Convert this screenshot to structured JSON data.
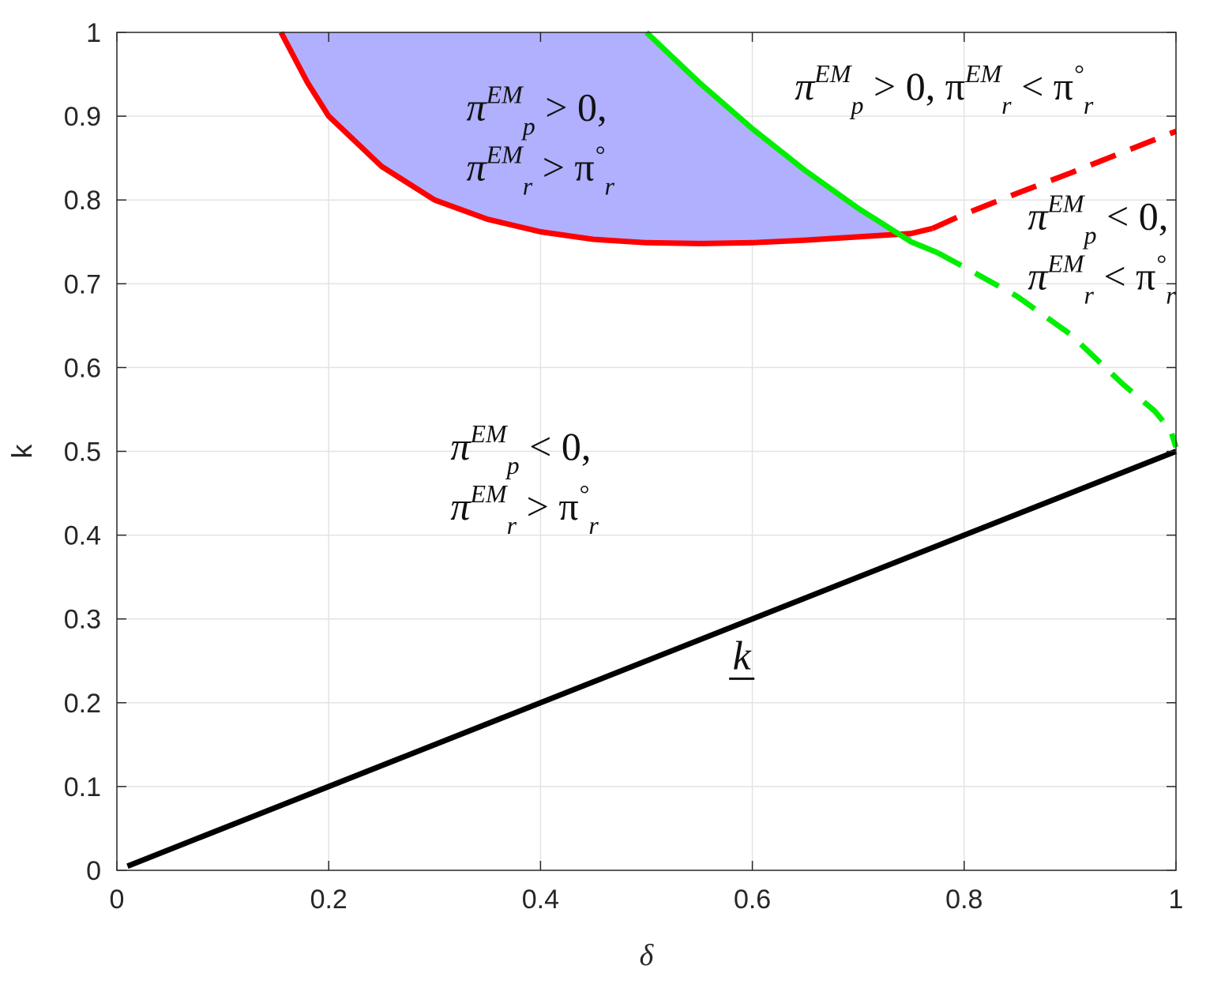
{
  "chart_data": {
    "type": "line",
    "title": "",
    "xlabel": "δ",
    "ylabel": "k",
    "xlim": [
      0,
      1
    ],
    "ylim": [
      0,
      1
    ],
    "xticks": [
      0,
      0.2,
      0.4,
      0.6,
      0.8,
      1
    ],
    "xtick_labels": [
      "0",
      "0.2",
      "0.4",
      "0.6",
      "0.8",
      "1"
    ],
    "yticks": [
      0,
      0.1,
      0.2,
      0.3,
      0.4,
      0.5,
      0.6,
      0.7,
      0.8,
      0.9,
      1
    ],
    "ytick_labels": [
      "0",
      "0.1",
      "0.2",
      "0.3",
      "0.4",
      "0.5",
      "0.6",
      "0.7",
      "0.8",
      "0.9",
      "1"
    ],
    "grid": true,
    "colors": {
      "red": "#ff0000",
      "green": "#00ee00",
      "black": "#000000",
      "fill": "#b0b0ff",
      "grid": "#e3e3e3",
      "axis": "#262626"
    },
    "series": [
      {
        "color": "red",
        "style": "solid",
        "x": [
          0.155,
          0.18,
          0.2,
          0.25,
          0.3,
          0.35,
          0.4,
          0.45,
          0.5,
          0.55,
          0.6,
          0.65,
          0.7,
          0.75,
          0.77
        ],
        "y": [
          1.0,
          0.94,
          0.9,
          0.84,
          0.8,
          0.777,
          0.762,
          0.753,
          0.749,
          0.748,
          0.749,
          0.752,
          0.756,
          0.76,
          0.766
        ]
      },
      {
        "color": "red",
        "style": "dashed",
        "x": [
          0.77,
          0.8,
          0.85,
          0.9,
          0.95,
          1.0
        ],
        "y": [
          0.766,
          0.783,
          0.808,
          0.832,
          0.857,
          0.882
        ]
      },
      {
        "color": "green",
        "style": "solid",
        "x": [
          0.5,
          0.55,
          0.6,
          0.65,
          0.7,
          0.75,
          0.775
        ],
        "y": [
          1.0,
          0.94,
          0.885,
          0.835,
          0.79,
          0.75,
          0.737
        ]
      },
      {
        "color": "green",
        "style": "dashed",
        "x": [
          0.775,
          0.8,
          0.85,
          0.9,
          0.95,
          0.98,
          0.995,
          1.0
        ],
        "y": [
          0.737,
          0.72,
          0.685,
          0.64,
          0.58,
          0.548,
          0.525,
          0.505
        ]
      },
      {
        "color": "black",
        "style": "solid",
        "x": [
          0.01,
          1.0
        ],
        "y": [
          0.005,
          0.5
        ]
      }
    ],
    "annotations": [
      {
        "id": "region_top_left",
        "lines": [
          {
            "pi": "π",
            "sub": "p",
            "sup": "EM",
            "rest": " > 0,"
          },
          {
            "pi": "π",
            "sub": "r",
            "sup": "EM",
            "rest": " > π",
            "tail_sub": "r",
            "tail_sup": "°"
          }
        ],
        "x": 0.33,
        "y": 0.895
      },
      {
        "id": "region_top_right",
        "lines": [
          {
            "pi": "π",
            "sub": "p",
            "sup": "EM",
            "rest": " > 0, π",
            "mid_sub": "r",
            "mid_sup": "EM",
            "rest2": " < π",
            "tail_sub": "r",
            "tail_sup": "°"
          }
        ],
        "x": 0.64,
        "y": 0.92
      },
      {
        "id": "region_right",
        "lines": [
          {
            "pi": "π",
            "sub": "p",
            "sup": "EM",
            "rest": " < 0,"
          },
          {
            "pi": "π",
            "sub": "r",
            "sup": "EM",
            "rest": " < π",
            "tail_sub": "r",
            "tail_sup": "°"
          }
        ],
        "x": 0.86,
        "y": 0.765
      },
      {
        "id": "region_middle",
        "lines": [
          {
            "pi": "π",
            "sub": "p",
            "sup": "EM",
            "rest": " < 0,"
          },
          {
            "pi": "π",
            "sub": "r",
            "sup": "EM",
            "rest": " > π",
            "tail_sub": "r",
            "tail_sup": "°"
          }
        ],
        "x": 0.315,
        "y": 0.49
      }
    ],
    "curve_label": {
      "text": "k",
      "x": 0.59,
      "y": 0.24
    }
  }
}
